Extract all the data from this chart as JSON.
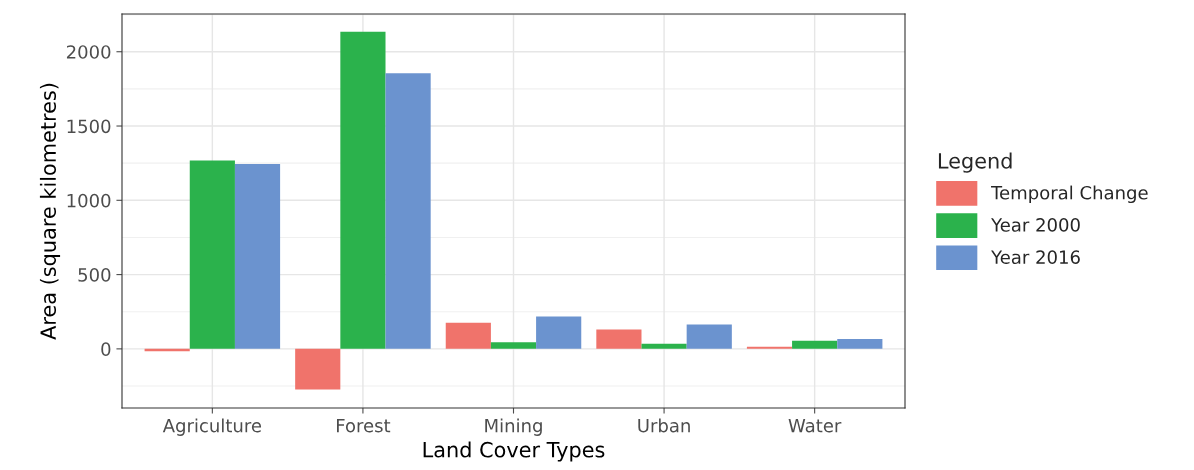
{
  "chart_data": {
    "type": "bar",
    "xlabel": "Land Cover Types",
    "ylabel": "Area (square kilometres)",
    "legend_title": "Legend",
    "categories": [
      "Agriculture",
      "Forest",
      "Mining",
      "Urban",
      "Water"
    ],
    "series": [
      {
        "name": "Temporal Change",
        "color": "#f0736b",
        "values": [
          -16,
          -274,
          175,
          130,
          15
        ]
      },
      {
        "name": "Year 2000",
        "color": "#2bb24c",
        "values": [
          1268,
          2135,
          45,
          34,
          54
        ]
      },
      {
        "name": "Year 2016",
        "color": "#6b93cf",
        "values": [
          1245,
          1856,
          218,
          164,
          67
        ]
      }
    ],
    "ylim": [
      -398,
      2254
    ],
    "yticks": [
      0,
      500,
      1000,
      1500,
      2000
    ],
    "grid": true,
    "legend": "right"
  }
}
